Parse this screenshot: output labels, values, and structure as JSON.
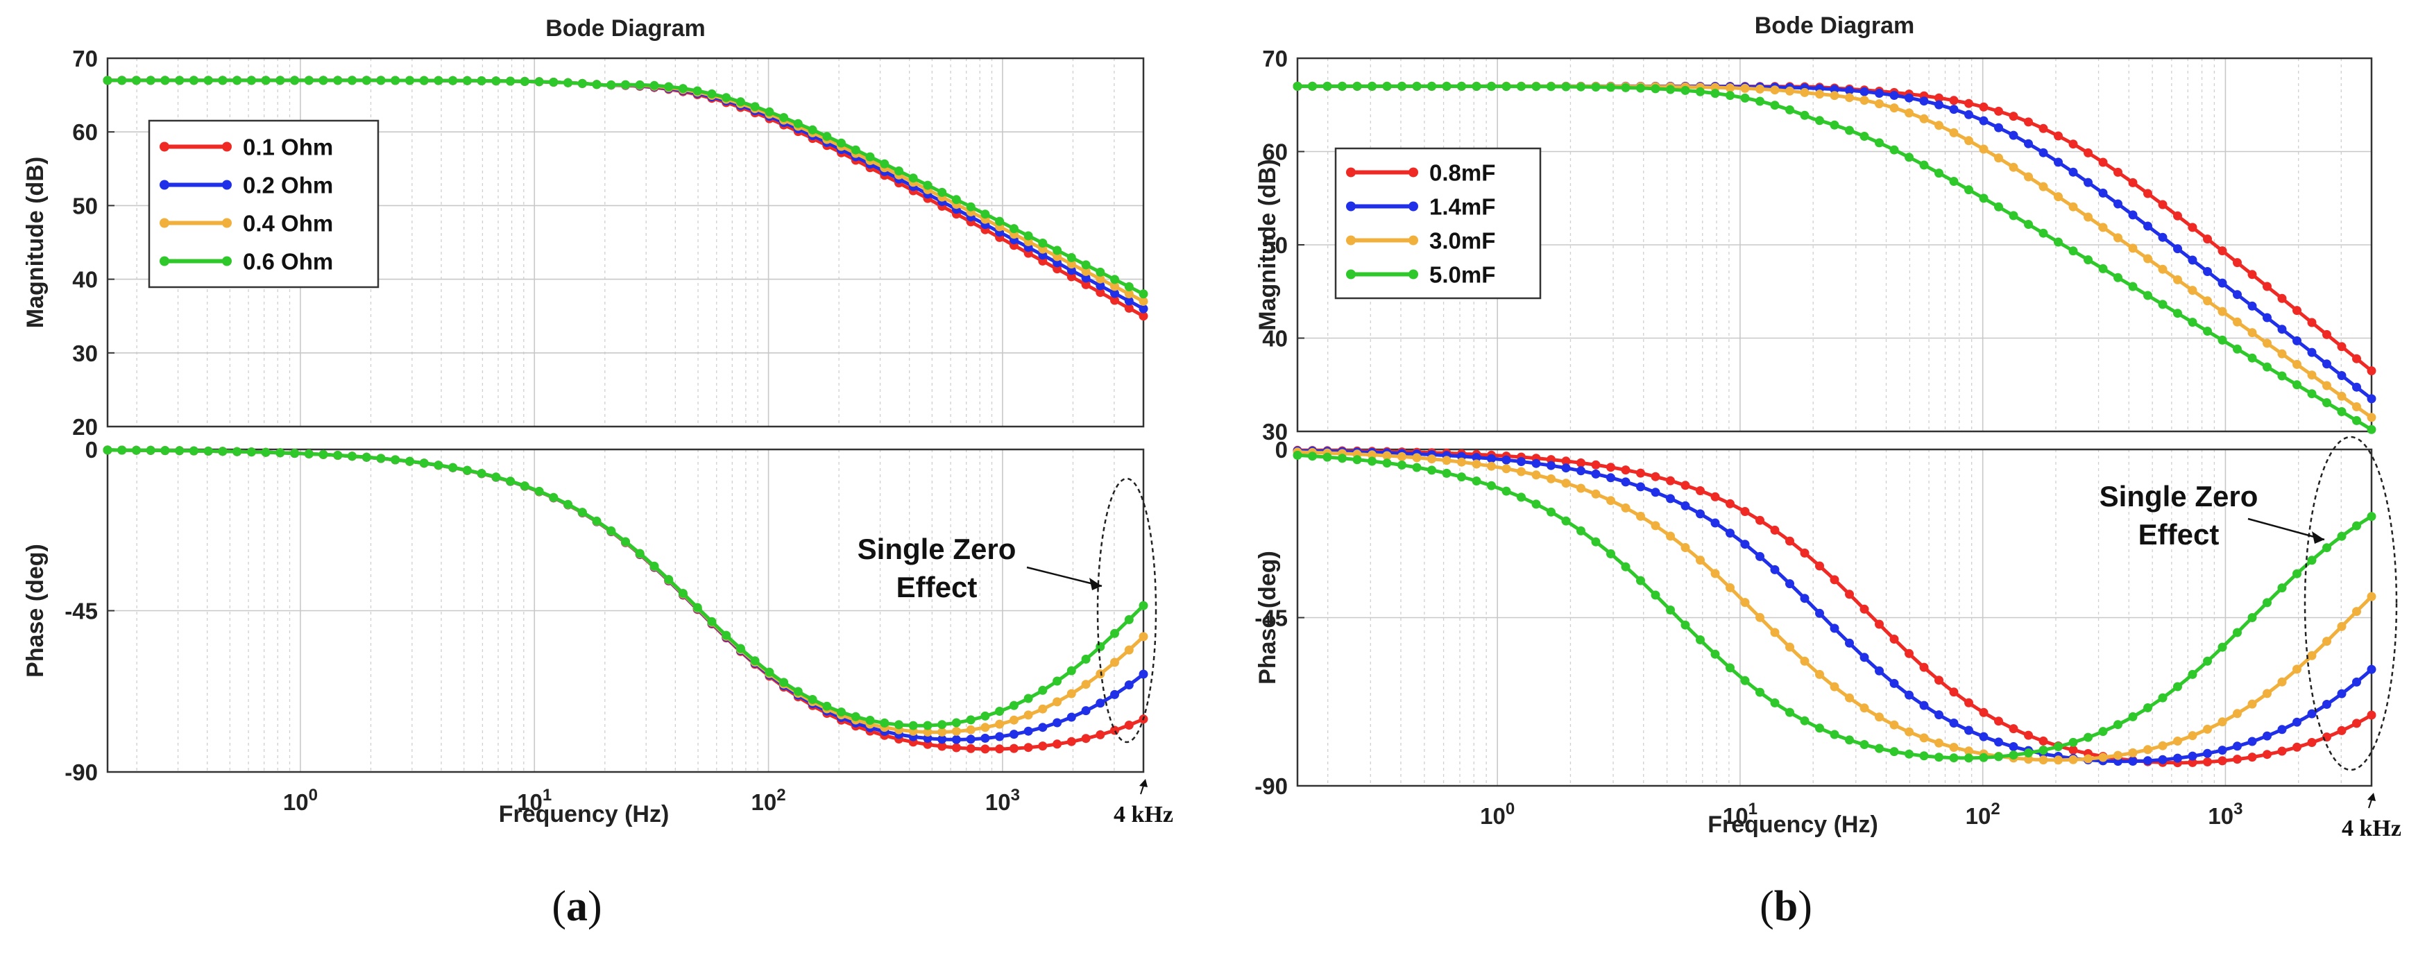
{
  "colors": {
    "red": "#ef2a24",
    "blue": "#2030e8",
    "orange": "#f1b03c",
    "green": "#2ec82a"
  },
  "chart_data": [
    {
      "type": "line",
      "panel_label": "a",
      "title": "Bode Diagram",
      "xlabel": "Frequency  (Hz)",
      "xscale": "log",
      "xlim_hz": [
        0.15,
        4000
      ],
      "x_ticks": [
        {
          "base": "10",
          "exp": "0"
        },
        {
          "base": "10",
          "exp": "1"
        },
        {
          "base": "10",
          "exp": "2"
        },
        {
          "base": "10",
          "exp": "3"
        }
      ],
      "x_end_label": "4 kHz",
      "magnitude": {
        "ylabel": "Magnitude (dB)",
        "ylim": [
          20,
          70
        ],
        "yticks": [
          "20",
          "30",
          "40",
          "50",
          "60",
          "70"
        ],
        "legend": {
          "position": "top-left"
        },
        "series": [
          {
            "name": "0.1 Ohm",
            "color": "#ef2a24",
            "dc_gain_db": 67,
            "corner_hz": 50,
            "high_freq_db_at_4khz": 35
          },
          {
            "name": "0.2 Ohm",
            "color": "#2030e8",
            "dc_gain_db": 67,
            "corner_hz": 50,
            "high_freq_db_at_4khz": 36
          },
          {
            "name": "0.4 Ohm",
            "color": "#f1b03c",
            "dc_gain_db": 67,
            "corner_hz": 50,
            "high_freq_db_at_4khz": 37
          },
          {
            "name": "0.6 Ohm",
            "color": "#2ec82a",
            "dc_gain_db": 67,
            "corner_hz": 50,
            "high_freq_db_at_4khz": 38
          }
        ]
      },
      "phase": {
        "ylabel": "Phase (deg)",
        "ylim": [
          -90,
          0
        ],
        "yticks": [
          "-90",
          "-45",
          "0"
        ],
        "series": [
          {
            "name": "0.1 Ohm",
            "color": "#ef2a24",
            "pole_hz": 50,
            "zero_hz": 16000
          },
          {
            "name": "0.2 Ohm",
            "color": "#2030e8",
            "pole_hz": 50,
            "zero_hz": 8000
          },
          {
            "name": "0.4 Ohm",
            "color": "#f1b03c",
            "pole_hz": 50,
            "zero_hz": 5300
          },
          {
            "name": "0.6 Ohm",
            "color": "#2ec82a",
            "pole_hz": 50,
            "zero_hz": 3900
          }
        ],
        "annotation": {
          "line1": "Single Zero",
          "line2": "Effect"
        }
      }
    },
    {
      "type": "line",
      "panel_label": "b",
      "title": "Bode Diagram",
      "xlabel": "Frequency  (Hz)",
      "xscale": "log",
      "xlim_hz": [
        0.15,
        4000
      ],
      "x_ticks": [
        {
          "base": "10",
          "exp": "0"
        },
        {
          "base": "10",
          "exp": "1"
        },
        {
          "base": "10",
          "exp": "2"
        },
        {
          "base": "10",
          "exp": "3"
        }
      ],
      "x_end_label": "4 kHz",
      "magnitude": {
        "ylabel": "Magnitude (dB)",
        "ylim": [
          30,
          70
        ],
        "yticks": [
          "30",
          "40",
          "50",
          "60",
          "70"
        ],
        "legend": {
          "position": "top-left"
        },
        "series": [
          {
            "name": "0.8mF",
            "color": "#ef2a24",
            "dc_gain_db": 67,
            "corner_hz": 160,
            "high_freq_db_at_4khz": 36.5
          },
          {
            "name": "1.4mF",
            "color": "#2030e8",
            "dc_gain_db": 67,
            "corner_hz": 90,
            "high_freq_db_at_4khz": 33.5
          },
          {
            "name": "3.0mF",
            "color": "#f1b03c",
            "dc_gain_db": 67,
            "corner_hz": 45,
            "high_freq_db_at_4khz": 31.5
          },
          {
            "name": "5.0mF",
            "color": "#2ec82a",
            "dc_gain_db": 67,
            "corner_hz": 18,
            "high_freq_db_at_4khz": 30.2
          }
        ]
      },
      "phase": {
        "ylabel": "Phase (deg)",
        "ylim": [
          -90,
          0
        ],
        "yticks": [
          "-90",
          "-45",
          "0"
        ],
        "series": [
          {
            "name": "0.8mF",
            "color": "#ef2a24",
            "pole_hz": 35,
            "zero_hz": 12000
          },
          {
            "name": "1.4mF",
            "color": "#2030e8",
            "pole_hz": 22,
            "zero_hz": 6700
          },
          {
            "name": "3.0mF",
            "color": "#f1b03c",
            "pole_hz": 12,
            "zero_hz": 3300
          },
          {
            "name": "5.0mF",
            "color": "#2ec82a",
            "pole_hz": 5.5,
            "zero_hz": 1300
          }
        ],
        "annotation": {
          "line1": "Single Zero",
          "line2": "Effect"
        }
      }
    }
  ]
}
